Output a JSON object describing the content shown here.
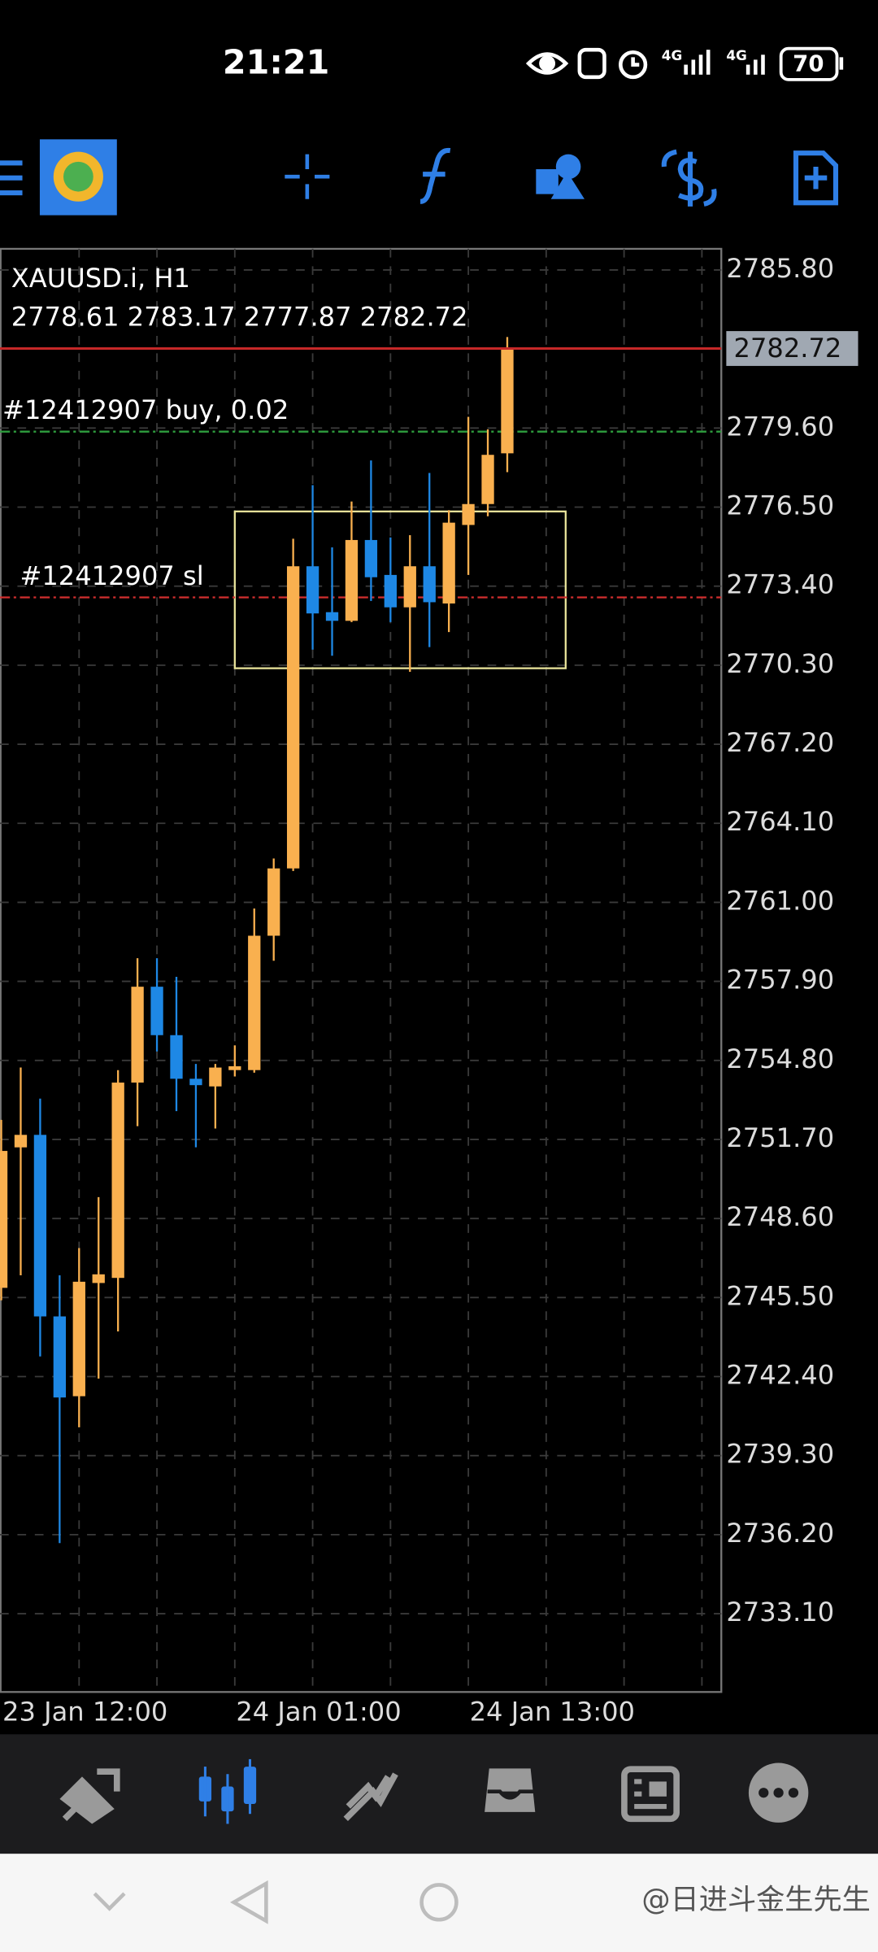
{
  "status_bar": {
    "time": "21:21",
    "network": [
      "4G",
      "4G"
    ],
    "battery": "70"
  },
  "chart_data": {
    "type": "candlestick",
    "title": "XAUUSD.i, H1",
    "subtitle": "2778.61 2783.17 2777.87 2782.72",
    "categories": [
      "23 Jan 12:00",
      null,
      null,
      null,
      null,
      null,
      null,
      null,
      null,
      null,
      null,
      null,
      "24 Jan 01:00",
      null,
      null,
      null,
      null,
      null,
      null,
      null,
      null,
      null,
      null,
      null,
      "24 Jan 13:00",
      null,
      null
    ],
    "open": [
      2745.88,
      2751.39,
      2751.88,
      2744.76,
      2741.63,
      2746.07,
      2746.27,
      2753.93,
      2757.69,
      2755.79,
      2754.08,
      2753.78,
      2754.42,
      2754.42,
      2759.69,
      2762.33,
      2774.18,
      2772.38,
      2772.04,
      2775.21,
      2773.84,
      2772.57,
      2774.18,
      2772.72,
      2775.8,
      2776.62,
      2778.61
    ],
    "high": [
      2752.47,
      2754.52,
      2753.3,
      2746.37,
      2747.44,
      2749.44,
      2754.42,
      2758.81,
      2758.81,
      2758.08,
      2754.66,
      2754.66,
      2755.39,
      2760.76,
      2762.72,
      2775.26,
      2777.36,
      2774.92,
      2776.72,
      2778.33,
      2775.31,
      2775.4,
      2777.84,
      2776.38,
      2780.04,
      2779.55,
      2783.17
    ],
    "low": [
      2745.39,
      2746.37,
      2743.19,
      2735.87,
      2740.41,
      2742.32,
      2744.17,
      2752.22,
      2755.15,
      2752.81,
      2751.39,
      2752.13,
      2754.17,
      2754.32,
      2758.71,
      2762.23,
      2770.91,
      2770.67,
      2771.99,
      2772.82,
      2771.99,
      2770.04,
      2771.01,
      2771.6,
      2773.84,
      2776.14,
      2777.87
    ],
    "close": [
      2751.25,
      2751.88,
      2744.76,
      2741.58,
      2746.12,
      2746.41,
      2753.93,
      2757.69,
      2755.79,
      2754.08,
      2753.83,
      2754.52,
      2754.57,
      2759.69,
      2762.33,
      2774.18,
      2772.33,
      2772.04,
      2775.21,
      2773.75,
      2772.57,
      2774.18,
      2772.77,
      2775.89,
      2776.62,
      2778.55,
      2782.72
    ],
    "up_color": "#f9b04f",
    "down_color": "#1e88e5",
    "ylim": [
      2730.03,
      2786.63
    ],
    "yticks": [
      {
        "value": 2785.8,
        "label": "2785.80"
      },
      {
        "value": 2779.6,
        "label": "2779.60"
      },
      {
        "value": 2776.5,
        "label": "2776.50"
      },
      {
        "value": 2773.4,
        "label": "2773.40"
      },
      {
        "value": 2770.3,
        "label": "2770.30"
      },
      {
        "value": 2767.2,
        "label": "2767.20"
      },
      {
        "value": 2764.1,
        "label": "2764.10"
      },
      {
        "value": 2761.0,
        "label": "2761.00"
      },
      {
        "value": 2757.9,
        "label": "2757.90"
      },
      {
        "value": 2754.8,
        "label": "2754.80"
      },
      {
        "value": 2751.7,
        "label": "2751.70"
      },
      {
        "value": 2748.6,
        "label": "2748.60"
      },
      {
        "value": 2745.5,
        "label": "2745.50"
      },
      {
        "value": 2742.4,
        "label": "2742.40"
      },
      {
        "value": 2739.3,
        "label": "2739.30"
      },
      {
        "value": 2736.2,
        "label": "2736.20"
      },
      {
        "value": 2733.1,
        "label": "2733.10"
      }
    ],
    "grid": true,
    "price_line": {
      "value": 2782.72,
      "color": "#c62828"
    },
    "lines": [
      {
        "label": "#12412907 buy, 0.02",
        "value": 2779.46,
        "color": "#2e9e3e"
      },
      {
        "label": "#12412907 sl",
        "value": 2772.96,
        "color": "#d32f2f"
      }
    ],
    "rectangle": {
      "x": [
        12,
        29
      ],
      "y": [
        2776.33,
        2770.18
      ],
      "color": "#e8e39a"
    }
  },
  "watermark": "@日进斗金生先生"
}
